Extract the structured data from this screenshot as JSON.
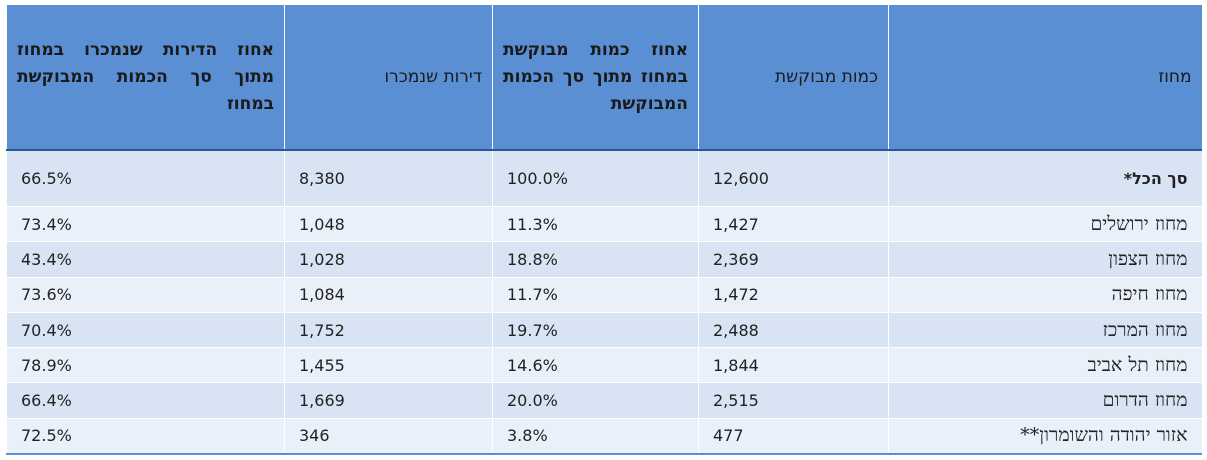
{
  "table": {
    "headers": {
      "region": "מחוז",
      "requested_qty": "כמות מבוקשת",
      "pct_of_requested": "אחוז כמות מבוקשת במחוז מתוך סך הכמות המבוקשת",
      "units_sold": "דירות שנמכרו",
      "pct_sold": "אחוז הדירות שנמכרו במחוז מתוך סך הכמות המבוקשת במחוז"
    },
    "rows": [
      {
        "region": "סך הכל*",
        "requested_qty": "12,600",
        "pct_of_requested": "100.0%",
        "units_sold": "8,380",
        "pct_sold": "66.5%"
      },
      {
        "region": "מחוז ירושלים",
        "requested_qty": "1,427",
        "pct_of_requested": "11.3%",
        "units_sold": "1,048",
        "pct_sold": "73.4%"
      },
      {
        "region": "מחוז הצפון",
        "requested_qty": "2,369",
        "pct_of_requested": "18.8%",
        "units_sold": "1,028",
        "pct_sold": "43.4%"
      },
      {
        "region": "מחוז חיפה",
        "requested_qty": "1,472",
        "pct_of_requested": "11.7%",
        "units_sold": "1,084",
        "pct_sold": "73.6%"
      },
      {
        "region": "מחוז המרכז",
        "requested_qty": "2,488",
        "pct_of_requested": "19.7%",
        "units_sold": "1,752",
        "pct_sold": "70.4%"
      },
      {
        "region": "מחוז תל אביב",
        "requested_qty": "1,844",
        "pct_of_requested": "14.6%",
        "units_sold": "1,455",
        "pct_sold": "78.9%"
      },
      {
        "region": "מחוז הדרום",
        "requested_qty": "2,515",
        "pct_of_requested": "20.0%",
        "units_sold": "1,669",
        "pct_sold": "66.4%"
      },
      {
        "region": "אזור יהודה והשומרון**",
        "requested_qty": "477",
        "pct_of_requested": "3.8%",
        "units_sold": "346",
        "pct_sold": "72.5%"
      }
    ]
  }
}
